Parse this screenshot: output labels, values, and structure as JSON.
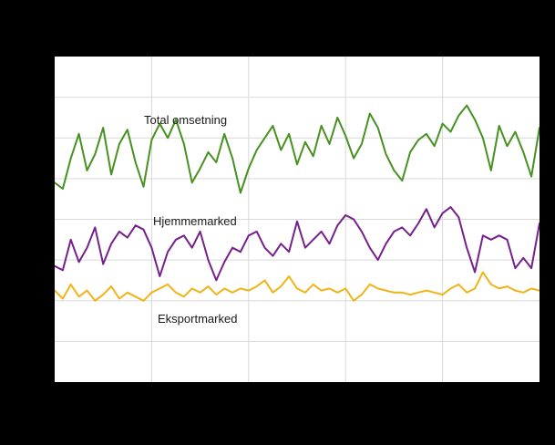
{
  "chart_data": {
    "type": "line",
    "title": "",
    "xlabel": "",
    "ylabel": "",
    "ylim": [
      0,
      160
    ],
    "y_grid_step": 20,
    "x_divisions": 5,
    "grid": true,
    "legend_position": "inline-annotations",
    "background_color": "#000000",
    "plot_background_color": "#ffffff",
    "grid_color": "#d9d9d9",
    "series": [
      {
        "name": "Total omsetning",
        "color": "#46911f",
        "values": [
          98,
          95,
          110,
          122,
          104,
          112,
          125,
          102,
          117,
          124,
          108,
          96,
          119,
          127,
          120,
          129,
          117,
          98,
          105,
          113,
          108,
          122,
          110,
          93,
          105,
          114,
          120,
          126,
          114,
          122,
          107,
          118,
          111,
          126,
          117,
          130,
          121,
          110,
          117,
          132,
          125,
          112,
          104,
          99,
          113,
          119,
          122,
          116,
          127,
          123,
          131,
          136,
          129,
          120,
          104,
          126,
          116,
          123,
          113,
          101,
          125
        ]
      },
      {
        "name": "Hjemmemarked",
        "color": "#76208c",
        "values": [
          57,
          55,
          70,
          59,
          66,
          76,
          58,
          68,
          74,
          71,
          77,
          75,
          66,
          52,
          64,
          70,
          72,
          66,
          74,
          60,
          50,
          59,
          66,
          64,
          72,
          74,
          66,
          62,
          68,
          64,
          79,
          66,
          70,
          74,
          68,
          77,
          82,
          80,
          74,
          66,
          60,
          68,
          74,
          76,
          72,
          78,
          85,
          76,
          83,
          86,
          81,
          66,
          54,
          72,
          70,
          72,
          70,
          56,
          61,
          56,
          78
        ]
      },
      {
        "name": "Eksportmarked",
        "color": "#f0b417",
        "values": [
          45,
          41,
          48,
          42,
          45,
          40,
          43,
          47,
          41,
          44,
          42,
          40,
          44,
          46,
          48,
          44,
          42,
          46,
          44,
          47,
          43,
          46,
          44,
          46,
          45,
          47,
          50,
          44,
          47,
          52,
          46,
          44,
          48,
          45,
          46,
          44,
          46,
          40,
          43,
          48,
          46,
          45,
          44,
          44,
          43,
          44,
          45,
          44,
          43,
          46,
          48,
          44,
          46,
          54,
          48,
          46,
          47,
          45,
          44,
          46,
          45
        ]
      }
    ]
  }
}
